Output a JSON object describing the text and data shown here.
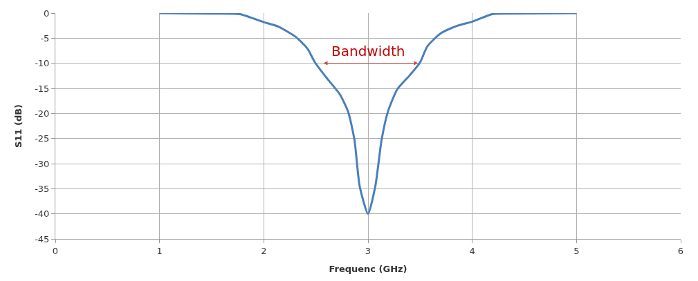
{
  "chart_data": {
    "type": "line",
    "xlabel": "Frequenc (GHz)",
    "ylabel": "S11 (dB)",
    "series": [
      {
        "color": "#4a7ebb",
        "x": [
          1,
          1.5,
          1.77,
          2.0,
          2.14,
          2.31,
          2.42,
          2.49,
          2.61,
          2.73,
          2.81,
          2.87,
          2.92,
          3.0,
          3.07,
          3.13,
          3.19,
          3.28,
          3.4,
          3.5,
          3.57,
          3.7,
          3.86,
          4.0,
          4.19,
          4.3,
          5
        ],
        "values": [
          0,
          -0.1,
          -0.2,
          -1.8,
          -2.7,
          -4.8,
          -7.1,
          -9.8,
          -13.1,
          -16.2,
          -19.7,
          -25.3,
          -34.5,
          -40,
          -34.5,
          -25.3,
          -19.7,
          -15.2,
          -12.4,
          -9.8,
          -6.6,
          -4.0,
          -2.5,
          -1.7,
          -0.2,
          -0.1,
          0
        ]
      }
    ],
    "annotations": [
      "Bandwidth"
    ],
    "xlim": [
      0,
      6
    ],
    "xticks": [
      0,
      1,
      2,
      3,
      4,
      5,
      6
    ],
    "ylim": [
      -45,
      0
    ],
    "yticks": [
      -45,
      -40,
      -35,
      -30,
      -25,
      -20,
      -15,
      -10,
      -5,
      0
    ],
    "grid": true,
    "marker": "none",
    "line_style": "solid"
  }
}
